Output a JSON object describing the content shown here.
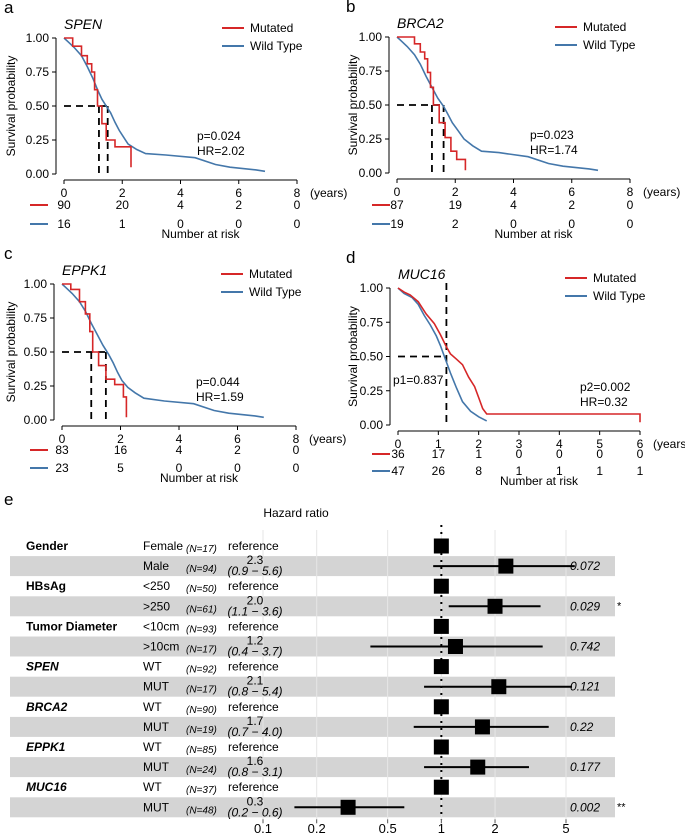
{
  "colors": {
    "mutated": "#d62728",
    "wildtype": "#4477aa",
    "band": "#d4d4d4"
  },
  "km_panels": [
    {
      "letter": "a",
      "gene": "SPEN",
      "legend": [
        "Mutated",
        "Wild Type"
      ],
      "ylabel": "Survival probability",
      "y_ticks": [
        "0.00",
        "0.25",
        "0.50",
        "0.75",
        "1.00"
      ],
      "x_ticks": [
        "0",
        "2",
        "4",
        "6",
        "8"
      ],
      "x_unit": "(years)",
      "xlim": [
        0,
        8
      ],
      "p_text": "p=0.024",
      "hr_text": "HR=2.02",
      "median_lines": [
        1.2,
        1.5
      ],
      "risk_label": "Number at risk",
      "risk_wild": [
        "90",
        "20",
        "4",
        "2",
        "0"
      ],
      "risk_mut": [
        "16",
        "1",
        "0",
        "0",
        "0"
      ],
      "mutated_curve": [
        [
          0,
          1
        ],
        [
          0.3,
          1
        ],
        [
          0.3,
          0.94
        ],
        [
          0.6,
          0.94
        ],
        [
          0.6,
          0.87
        ],
        [
          0.8,
          0.87
        ],
        [
          0.8,
          0.81
        ],
        [
          0.95,
          0.81
        ],
        [
          0.95,
          0.75
        ],
        [
          1.05,
          0.75
        ],
        [
          1.05,
          0.62
        ],
        [
          1.15,
          0.62
        ],
        [
          1.15,
          0.5
        ],
        [
          1.3,
          0.5
        ],
        [
          1.3,
          0.37
        ],
        [
          1.45,
          0.37
        ],
        [
          1.45,
          0.25
        ],
        [
          1.75,
          0.25
        ],
        [
          1.75,
          0.2
        ],
        [
          2.3,
          0.2
        ],
        [
          2.3,
          0.05
        ]
      ],
      "wild_curve": [
        [
          0,
          1
        ],
        [
          0.15,
          0.97
        ],
        [
          0.35,
          0.93
        ],
        [
          0.6,
          0.87
        ],
        [
          0.8,
          0.79
        ],
        [
          1.0,
          0.7
        ],
        [
          1.15,
          0.62
        ],
        [
          1.3,
          0.55
        ],
        [
          1.45,
          0.5
        ],
        [
          1.6,
          0.45
        ],
        [
          1.75,
          0.38
        ],
        [
          1.9,
          0.32
        ],
        [
          2.05,
          0.27
        ],
        [
          2.2,
          0.22
        ],
        [
          2.5,
          0.18
        ],
        [
          2.8,
          0.15
        ],
        [
          3.5,
          0.14
        ],
        [
          4.5,
          0.12
        ],
        [
          5.2,
          0.07
        ],
        [
          5.7,
          0.05
        ],
        [
          6.6,
          0.03
        ],
        [
          6.9,
          0.02
        ]
      ]
    },
    {
      "letter": "b",
      "gene": "BRCA2",
      "legend": [
        "Mutated",
        "Wild Type"
      ],
      "ylabel": "Survival probability",
      "y_ticks": [
        "0.00",
        "0.25",
        "0.50",
        "0.75",
        "1.00"
      ],
      "x_ticks": [
        "0",
        "2",
        "4",
        "6",
        "8"
      ],
      "x_unit": "(years)",
      "xlim": [
        0,
        8
      ],
      "p_text": "p=0.023",
      "hr_text": "HR=1.74",
      "median_lines": [
        1.2,
        1.6
      ],
      "risk_label": "Number at risk",
      "risk_wild": [
        "87",
        "19",
        "4",
        "2",
        "0"
      ],
      "risk_mut": [
        "19",
        "2",
        "0",
        "0",
        "0"
      ],
      "mutated_curve": [
        [
          0,
          1
        ],
        [
          0.6,
          1
        ],
        [
          0.6,
          0.95
        ],
        [
          0.8,
          0.95
        ],
        [
          0.8,
          0.89
        ],
        [
          0.95,
          0.89
        ],
        [
          0.95,
          0.84
        ],
        [
          1.05,
          0.84
        ],
        [
          1.05,
          0.74
        ],
        [
          1.15,
          0.74
        ],
        [
          1.15,
          0.63
        ],
        [
          1.25,
          0.63
        ],
        [
          1.25,
          0.5
        ],
        [
          1.45,
          0.5
        ],
        [
          1.45,
          0.37
        ],
        [
          1.65,
          0.37
        ],
        [
          1.65,
          0.26
        ],
        [
          1.85,
          0.26
        ],
        [
          1.85,
          0.16
        ],
        [
          2.05,
          0.16
        ],
        [
          2.05,
          0.1
        ],
        [
          2.35,
          0.1
        ],
        [
          2.35,
          0.02
        ]
      ],
      "wild_curve": [
        [
          0,
          1
        ],
        [
          0.15,
          0.97
        ],
        [
          0.35,
          0.93
        ],
        [
          0.6,
          0.87
        ],
        [
          0.8,
          0.8
        ],
        [
          1.0,
          0.71
        ],
        [
          1.2,
          0.63
        ],
        [
          1.4,
          0.55
        ],
        [
          1.6,
          0.49
        ],
        [
          1.75,
          0.43
        ],
        [
          1.9,
          0.37
        ],
        [
          2.1,
          0.31
        ],
        [
          2.3,
          0.25
        ],
        [
          2.6,
          0.2
        ],
        [
          2.9,
          0.16
        ],
        [
          3.5,
          0.15
        ],
        [
          4.5,
          0.12
        ],
        [
          5.2,
          0.07
        ],
        [
          5.7,
          0.05
        ],
        [
          6.6,
          0.03
        ],
        [
          6.9,
          0.02
        ]
      ]
    },
    {
      "letter": "c",
      "gene": "EPPK1",
      "legend": [
        "Mutated",
        "Wild Type"
      ],
      "ylabel": "Survival probability",
      "y_ticks": [
        "0.00",
        "0.25",
        "0.50",
        "0.75",
        "1.00"
      ],
      "x_ticks": [
        "0",
        "2",
        "4",
        "6",
        "8"
      ],
      "x_unit": "(years)",
      "xlim": [
        0,
        8
      ],
      "p_text": "p=0.044",
      "hr_text": "HR=1.59",
      "median_lines": [
        1.0,
        1.5
      ],
      "risk_label": "Number at risk",
      "risk_wild": [
        "83",
        "16",
        "4",
        "2",
        "0"
      ],
      "risk_mut": [
        "23",
        "5",
        "0",
        "0",
        "0"
      ],
      "mutated_curve": [
        [
          0,
          1
        ],
        [
          0.3,
          1
        ],
        [
          0.3,
          0.96
        ],
        [
          0.6,
          0.96
        ],
        [
          0.6,
          0.87
        ],
        [
          0.8,
          0.87
        ],
        [
          0.8,
          0.78
        ],
        [
          0.95,
          0.78
        ],
        [
          0.95,
          0.65
        ],
        [
          1.05,
          0.65
        ],
        [
          1.05,
          0.5
        ],
        [
          1.25,
          0.5
        ],
        [
          1.25,
          0.4
        ],
        [
          1.5,
          0.4
        ],
        [
          1.5,
          0.3
        ],
        [
          1.8,
          0.3
        ],
        [
          1.8,
          0.26
        ],
        [
          2.1,
          0.26
        ],
        [
          2.1,
          0.17
        ],
        [
          2.2,
          0.17
        ],
        [
          2.2,
          0.02
        ]
      ],
      "wild_curve": [
        [
          0,
          1
        ],
        [
          0.15,
          0.97
        ],
        [
          0.35,
          0.93
        ],
        [
          0.6,
          0.87
        ],
        [
          0.8,
          0.8
        ],
        [
          1.0,
          0.71
        ],
        [
          1.2,
          0.63
        ],
        [
          1.4,
          0.55
        ],
        [
          1.6,
          0.48
        ],
        [
          1.75,
          0.42
        ],
        [
          1.9,
          0.35
        ],
        [
          2.05,
          0.29
        ],
        [
          2.25,
          0.24
        ],
        [
          2.5,
          0.2
        ],
        [
          2.8,
          0.16
        ],
        [
          3.5,
          0.14
        ],
        [
          4.5,
          0.12
        ],
        [
          5.2,
          0.07
        ],
        [
          5.7,
          0.05
        ],
        [
          6.6,
          0.03
        ],
        [
          6.9,
          0.02
        ]
      ]
    },
    {
      "letter": "d",
      "gene": "MUC16",
      "legend": [
        "Mutated",
        "Wild Type"
      ],
      "ylabel": "Survival probability",
      "y_ticks": [
        "0.00",
        "0.25",
        "0.50",
        "0.75",
        "1.00"
      ],
      "x_ticks": [
        "0",
        "1",
        "2",
        "3",
        "4",
        "5",
        "6"
      ],
      "x_unit": "(years)",
      "xlim": [
        0,
        6
      ],
      "p_text": "p2=0.002",
      "hr_text": "HR=0.32",
      "p1_text": "p1=0.837",
      "median_lines": [
        1.2
      ],
      "risk_label": "Number at risk",
      "risk_wild": [
        "36",
        "17",
        "1",
        "0",
        "0",
        "0",
        "0"
      ],
      "risk_mut": [
        "47",
        "26",
        "8",
        "1",
        "1",
        "1",
        "1"
      ],
      "mutated_curve": [
        [
          0,
          1
        ],
        [
          0.15,
          0.97
        ],
        [
          0.3,
          0.95
        ],
        [
          0.5,
          0.9
        ],
        [
          0.7,
          0.81
        ],
        [
          0.9,
          0.74
        ],
        [
          1.05,
          0.66
        ],
        [
          1.2,
          0.57
        ],
        [
          1.3,
          0.52
        ],
        [
          1.45,
          0.48
        ],
        [
          1.6,
          0.44
        ],
        [
          1.75,
          0.35
        ],
        [
          1.9,
          0.28
        ],
        [
          2.0,
          0.2
        ],
        [
          2.1,
          0.12
        ],
        [
          2.2,
          0.08
        ],
        [
          6,
          0.08
        ],
        [
          6,
          0.02
        ]
      ],
      "wild_curve": [
        [
          0,
          1
        ],
        [
          0.15,
          0.96
        ],
        [
          0.35,
          0.93
        ],
        [
          0.5,
          0.88
        ],
        [
          0.65,
          0.8
        ],
        [
          0.8,
          0.73
        ],
        [
          0.95,
          0.65
        ],
        [
          1.05,
          0.58
        ],
        [
          1.15,
          0.5
        ],
        [
          1.3,
          0.38
        ],
        [
          1.45,
          0.27
        ],
        [
          1.6,
          0.17
        ],
        [
          1.8,
          0.1
        ],
        [
          2.0,
          0.06
        ],
        [
          2.2,
          0.03
        ]
      ]
    }
  ],
  "forest": {
    "letter": "e",
    "title": "Hazard ratio",
    "x_ticks": [
      "0.1",
      "0.2",
      "0.5",
      "1",
      "2",
      "5"
    ],
    "x_tick_values": [
      0.1,
      0.2,
      0.5,
      1,
      2,
      5
    ],
    "xlim": [
      0.1,
      7.5
    ],
    "rows": [
      {
        "variable": "Gender",
        "italic": false,
        "level": "Female",
        "n": "(N=17)",
        "estimate": "reference",
        "ci": "",
        "hr": 1,
        "lo": null,
        "hi": null,
        "p": "",
        "sig": ""
      },
      {
        "variable": "",
        "italic": false,
        "level": "Male",
        "n": "(N=94)",
        "estimate": "2.3",
        "ci": "(0.9 − 5.6)",
        "hr": 2.3,
        "lo": 0.9,
        "hi": 5.6,
        "p": "0.072",
        "sig": ""
      },
      {
        "variable": "HBsAg",
        "italic": false,
        "level": "<250",
        "n": "(N=50)",
        "estimate": "reference",
        "ci": "",
        "hr": 1,
        "lo": null,
        "hi": null,
        "p": "",
        "sig": ""
      },
      {
        "variable": "",
        "italic": false,
        "level": ">250",
        "n": "(N=61)",
        "estimate": "2.0",
        "ci": "(1.1 − 3.6)",
        "hr": 2.0,
        "lo": 1.1,
        "hi": 3.6,
        "p": "0.029",
        "sig": "*"
      },
      {
        "variable": "Tumor Diameter",
        "italic": false,
        "level": "<10cm",
        "n": "(N=93)",
        "estimate": "reference",
        "ci": "",
        "hr": 1,
        "lo": null,
        "hi": null,
        "p": "",
        "sig": ""
      },
      {
        "variable": "",
        "italic": false,
        "level": ">10cm",
        "n": "(N=17)",
        "estimate": "1.2",
        "ci": "(0.4 − 3.7)",
        "hr": 1.2,
        "lo": 0.4,
        "hi": 3.7,
        "p": "0.742",
        "sig": ""
      },
      {
        "variable": "SPEN",
        "italic": true,
        "level": "WT",
        "n": "(N=92)",
        "estimate": "reference",
        "ci": "",
        "hr": 1,
        "lo": null,
        "hi": null,
        "p": "",
        "sig": ""
      },
      {
        "variable": "",
        "italic": false,
        "level": "MUT",
        "n": "(N=17)",
        "estimate": "2.1",
        "ci": "(0.8 − 5.4)",
        "hr": 2.1,
        "lo": 0.8,
        "hi": 5.4,
        "p": "0.121",
        "sig": ""
      },
      {
        "variable": "BRCA2",
        "italic": true,
        "level": "WT",
        "n": "(N=90)",
        "estimate": "reference",
        "ci": "",
        "hr": 1,
        "lo": null,
        "hi": null,
        "p": "",
        "sig": ""
      },
      {
        "variable": "",
        "italic": false,
        "level": "MUT",
        "n": "(N=19)",
        "estimate": "1.7",
        "ci": "(0.7 − 4.0)",
        "hr": 1.7,
        "lo": 0.7,
        "hi": 4.0,
        "p": "0.22",
        "sig": ""
      },
      {
        "variable": "EPPK1",
        "italic": true,
        "level": "WT",
        "n": "(N=85)",
        "estimate": "reference",
        "ci": "",
        "hr": 1,
        "lo": null,
        "hi": null,
        "p": "",
        "sig": ""
      },
      {
        "variable": "",
        "italic": false,
        "level": "MUT",
        "n": "(N=24)",
        "estimate": "1.6",
        "ci": "(0.8 − 3.1)",
        "hr": 1.6,
        "lo": 0.8,
        "hi": 3.1,
        "p": "0.177",
        "sig": ""
      },
      {
        "variable": "MUC16",
        "italic": true,
        "level": "WT",
        "n": "(N=37)",
        "estimate": "reference",
        "ci": "",
        "hr": 1,
        "lo": null,
        "hi": null,
        "p": "",
        "sig": ""
      },
      {
        "variable": "",
        "italic": false,
        "level": "MUT",
        "n": "(N=48)",
        "estimate": "0.3",
        "ci": "(0.2 − 0.6)",
        "hr": 0.3,
        "lo": 0.15,
        "hi": 0.62,
        "p": "0.002",
        "sig": "**"
      }
    ]
  },
  "chart_data": [
    {
      "type": "line",
      "title": "SPEN",
      "xlabel": "(years)",
      "ylabel": "Survival probability",
      "xlim": [
        0,
        8
      ],
      "ylim": [
        0,
        1
      ],
      "series": [
        {
          "name": "Mutated"
        },
        {
          "name": "Wild Type"
        }
      ],
      "annotations": [
        "p=0.024",
        "HR=2.02"
      ]
    },
    {
      "type": "line",
      "title": "BRCA2",
      "xlabel": "(years)",
      "ylabel": "Survival probability",
      "xlim": [
        0,
        8
      ],
      "ylim": [
        0,
        1
      ],
      "series": [
        {
          "name": "Mutated"
        },
        {
          "name": "Wild Type"
        }
      ],
      "annotations": [
        "p=0.023",
        "HR=1.74"
      ]
    },
    {
      "type": "line",
      "title": "EPPK1",
      "xlabel": "(years)",
      "ylabel": "Survival probability",
      "xlim": [
        0,
        8
      ],
      "ylim": [
        0,
        1
      ],
      "series": [
        {
          "name": "Mutated"
        },
        {
          "name": "Wild Type"
        }
      ],
      "annotations": [
        "p=0.044",
        "HR=1.59"
      ]
    },
    {
      "type": "line",
      "title": "MUC16",
      "xlabel": "(years)",
      "ylabel": "Survival probability",
      "xlim": [
        0,
        6
      ],
      "ylim": [
        0,
        1
      ],
      "series": [
        {
          "name": "Mutated"
        },
        {
          "name": "Wild Type"
        }
      ],
      "annotations": [
        "p1=0.837",
        "p2=0.002",
        "HR=0.32"
      ]
    },
    {
      "type": "scatter",
      "title": "Hazard ratio",
      "xscale": "log",
      "xlim": [
        0.1,
        7.5
      ],
      "categories": [
        "Gender Female",
        "Gender Male",
        "HBsAg <250",
        "HBsAg >250",
        "Tumor Diameter <10cm",
        "Tumor Diameter >10cm",
        "SPEN WT",
        "SPEN MUT",
        "BRCA2 WT",
        "BRCA2 MUT",
        "EPPK1 WT",
        "EPPK1 MUT",
        "MUC16 WT",
        "MUC16 MUT"
      ],
      "values": [
        1,
        2.3,
        1,
        2.0,
        1,
        1.2,
        1,
        2.1,
        1,
        1.7,
        1,
        1.6,
        1,
        0.3
      ]
    }
  ]
}
